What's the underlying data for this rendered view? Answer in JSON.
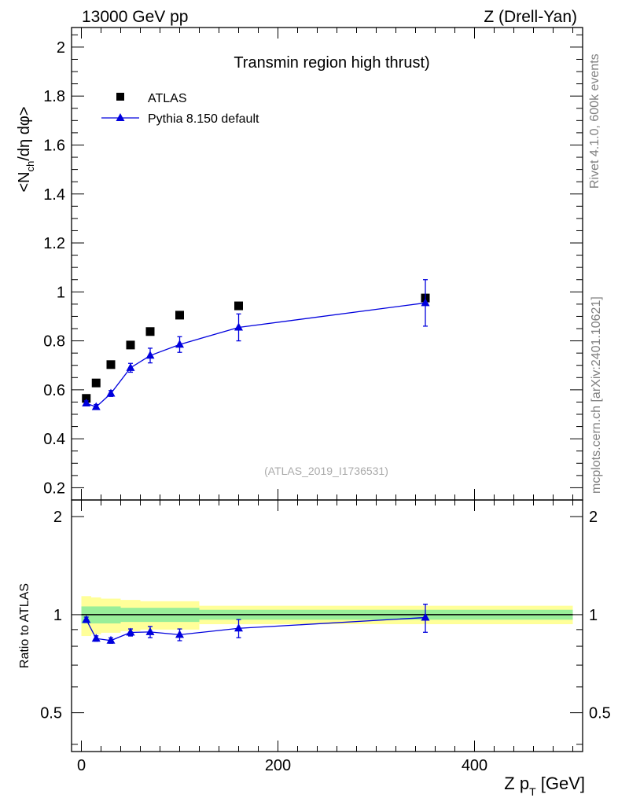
{
  "header": {
    "left": "13000 GeV pp",
    "right": "Z (Drell-Yan)"
  },
  "side_labels": {
    "rivet": "Rivet 4.1.0,  600k events",
    "mcplots": "mcplots.cern.ch [arXiv:2401.10621]"
  },
  "chart_data": [
    {
      "type": "scatter",
      "title": "Transmin region high thrust)",
      "watermark": "(ATLAS_2019_I1736531)",
      "xlabel_main": "Z p",
      "xlabel_sub": "T",
      "xlabel_unit": " [GeV]",
      "ylabel": "<N_ch/dη dφ>",
      "ylabel_parts": {
        "pre": "<N",
        "sub": "ch",
        "post": "/dη dφ>"
      },
      "xlim": [
        -10,
        510
      ],
      "ylim": [
        0.15,
        2.08
      ],
      "yticks": [
        0.2,
        0.4,
        0.6,
        0.8,
        1,
        1.2,
        1.4,
        1.6,
        1.8,
        2
      ],
      "ytick_labels": [
        "0.2",
        "0.4",
        "0.6",
        "0.8",
        "1",
        "1.2",
        "1.4",
        "1.6",
        "1.8",
        "2"
      ],
      "legend": [
        "ATLAS",
        "Pythia 8.150 default"
      ],
      "series": [
        {
          "name": "ATLAS",
          "marker": "square",
          "color": "#000000",
          "x": [
            5,
            15,
            30,
            50,
            70,
            100,
            160,
            350
          ],
          "y": [
            0.565,
            0.628,
            0.703,
            0.783,
            0.838,
            0.905,
            0.943,
            0.975
          ]
        },
        {
          "name": "Pythia 8.150 default",
          "marker": "triangle",
          "color": "#0000dd",
          "x": [
            5,
            15,
            30,
            50,
            70,
            100,
            160,
            350
          ],
          "y": [
            0.545,
            0.53,
            0.585,
            0.69,
            0.74,
            0.785,
            0.855,
            0.955
          ],
          "yerr": [
            0.01,
            0.01,
            0.012,
            0.018,
            0.03,
            0.032,
            0.055,
            0.095
          ]
        }
      ]
    },
    {
      "type": "scatter",
      "ylabel": "Ratio to ATLAS",
      "xlim": [
        -10,
        510
      ],
      "ylim": [
        0.38,
        2.25
      ],
      "yticks": [
        0.5,
        1,
        2
      ],
      "ytick_labels": [
        "0.5",
        "1",
        "2"
      ],
      "xticks": [
        0,
        200,
        400
      ],
      "xtick_labels": [
        "0",
        "200",
        "400"
      ],
      "bands": [
        {
          "x0": 0,
          "x1": 10,
          "green": 0.06,
          "yellow": 0.14
        },
        {
          "x0": 10,
          "x1": 20,
          "green": 0.06,
          "yellow": 0.13
        },
        {
          "x0": 20,
          "x1": 40,
          "green": 0.06,
          "yellow": 0.12
        },
        {
          "x0": 40,
          "x1": 60,
          "green": 0.05,
          "yellow": 0.11
        },
        {
          "x0": 60,
          "x1": 80,
          "green": 0.05,
          "yellow": 0.1
        },
        {
          "x0": 80,
          "x1": 120,
          "green": 0.05,
          "yellow": 0.1
        },
        {
          "x0": 120,
          "x1": 500,
          "green": 0.035,
          "yellow": 0.065
        }
      ],
      "series": [
        {
          "name": "Pythia 8.150 default / ATLAS",
          "marker": "triangle",
          "color": "#0000dd",
          "x": [
            5,
            15,
            30,
            50,
            70,
            100,
            160,
            350
          ],
          "y": [
            0.965,
            0.845,
            0.833,
            0.882,
            0.885,
            0.868,
            0.908,
            0.98
          ],
          "yerr": [
            0.018,
            0.016,
            0.016,
            0.022,
            0.035,
            0.036,
            0.058,
            0.097
          ]
        }
      ]
    }
  ]
}
